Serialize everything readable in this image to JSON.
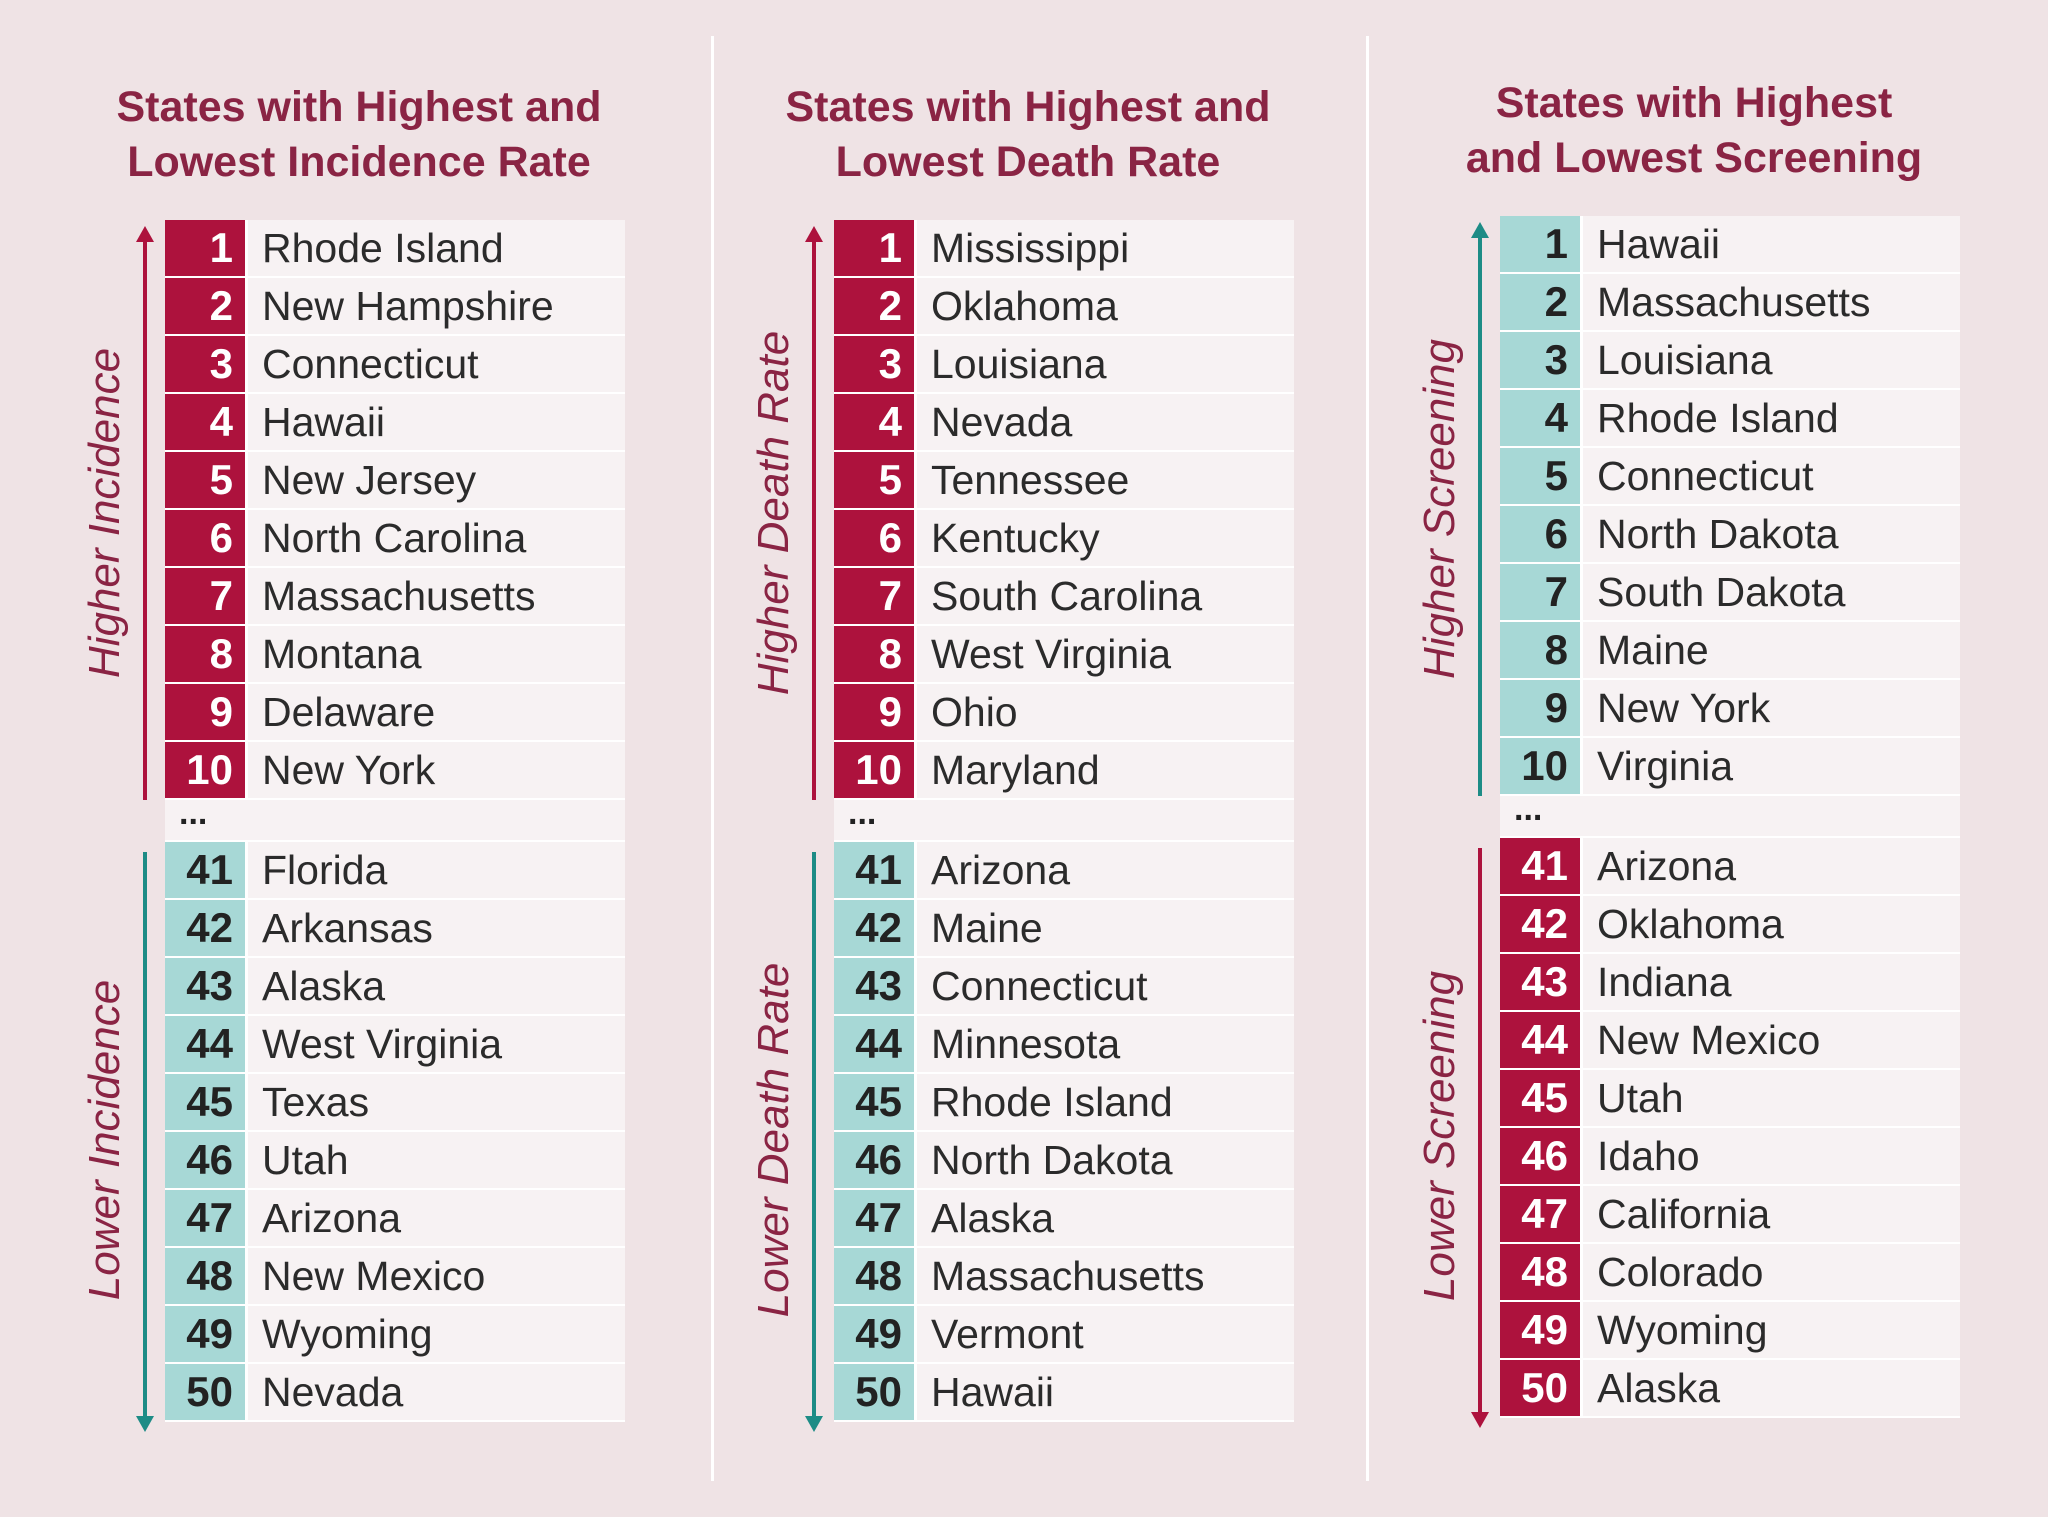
{
  "colors": {
    "background": "#efe3e5",
    "title": "#8a2444",
    "rank_red": "#ad123d",
    "rank_teal": "#a7d8d6",
    "arrow_teal": "#1d8c86"
  },
  "ellipsis": "...",
  "panels": [
    {
      "title_line1": "States with Highest and",
      "title_line2": "Lowest Incidence Rate",
      "upper_label": "Higher Incidence",
      "lower_label": "Lower Incidence",
      "top": [
        {
          "rank": "1",
          "name": "Rhode Island"
        },
        {
          "rank": "2",
          "name": "New Hampshire"
        },
        {
          "rank": "3",
          "name": "Connecticut"
        },
        {
          "rank": "4",
          "name": "Hawaii"
        },
        {
          "rank": "5",
          "name": "New Jersey"
        },
        {
          "rank": "6",
          "name": "North Carolina"
        },
        {
          "rank": "7",
          "name": "Massachusetts"
        },
        {
          "rank": "8",
          "name": "Montana"
        },
        {
          "rank": "9",
          "name": "Delaware"
        },
        {
          "rank": "10",
          "name": "New York"
        }
      ],
      "bottom": [
        {
          "rank": "41",
          "name": "Florida"
        },
        {
          "rank": "42",
          "name": "Arkansas"
        },
        {
          "rank": "43",
          "name": "Alaska"
        },
        {
          "rank": "44",
          "name": "West Virginia"
        },
        {
          "rank": "45",
          "name": "Texas"
        },
        {
          "rank": "46",
          "name": "Utah"
        },
        {
          "rank": "47",
          "name": "Arizona"
        },
        {
          "rank": "48",
          "name": "New Mexico"
        },
        {
          "rank": "49",
          "name": "Wyoming"
        },
        {
          "rank": "50",
          "name": "Nevada"
        }
      ]
    },
    {
      "title_line1": "States with Highest and",
      "title_line2": "Lowest Death Rate",
      "upper_label": "Higher Death Rate",
      "lower_label": "Lower Death Rate",
      "top": [
        {
          "rank": "1",
          "name": "Mississippi"
        },
        {
          "rank": "2",
          "name": "Oklahoma"
        },
        {
          "rank": "3",
          "name": "Louisiana"
        },
        {
          "rank": "4",
          "name": "Nevada"
        },
        {
          "rank": "5",
          "name": "Tennessee"
        },
        {
          "rank": "6",
          "name": "Kentucky"
        },
        {
          "rank": "7",
          "name": "South Carolina"
        },
        {
          "rank": "8",
          "name": "West Virginia"
        },
        {
          "rank": "9",
          "name": "Ohio"
        },
        {
          "rank": "10",
          "name": "Maryland"
        }
      ],
      "bottom": [
        {
          "rank": "41",
          "name": "Arizona"
        },
        {
          "rank": "42",
          "name": "Maine"
        },
        {
          "rank": "43",
          "name": "Connecticut"
        },
        {
          "rank": "44",
          "name": "Minnesota"
        },
        {
          "rank": "45",
          "name": "Rhode Island"
        },
        {
          "rank": "46",
          "name": "North Dakota"
        },
        {
          "rank": "47",
          "name": "Alaska"
        },
        {
          "rank": "48",
          "name": "Massachusetts"
        },
        {
          "rank": "49",
          "name": "Vermont"
        },
        {
          "rank": "50",
          "name": "Hawaii"
        }
      ]
    },
    {
      "title_line1": "States with Highest",
      "title_line2": "and Lowest Screening",
      "upper_label": "Higher Screening",
      "lower_label": "Lower Screening",
      "top": [
        {
          "rank": "1",
          "name": "Hawaii"
        },
        {
          "rank": "2",
          "name": "Massachusetts"
        },
        {
          "rank": "3",
          "name": "Louisiana"
        },
        {
          "rank": "4",
          "name": "Rhode Island"
        },
        {
          "rank": "5",
          "name": "Connecticut"
        },
        {
          "rank": "6",
          "name": "North Dakota"
        },
        {
          "rank": "7",
          "name": "South Dakota"
        },
        {
          "rank": "8",
          "name": "Maine"
        },
        {
          "rank": "9",
          "name": "New York"
        },
        {
          "rank": "10",
          "name": "Virginia"
        }
      ],
      "bottom": [
        {
          "rank": "41",
          "name": "Arizona"
        },
        {
          "rank": "42",
          "name": "Oklahoma"
        },
        {
          "rank": "43",
          "name": "Indiana"
        },
        {
          "rank": "44",
          "name": "New Mexico"
        },
        {
          "rank": "45",
          "name": "Utah"
        },
        {
          "rank": "46",
          "name": "Idaho"
        },
        {
          "rank": "47",
          "name": "California"
        },
        {
          "rank": "48",
          "name": "Colorado"
        },
        {
          "rank": "49",
          "name": "Wyoming"
        },
        {
          "rank": "50",
          "name": "Alaska"
        }
      ]
    }
  ]
}
